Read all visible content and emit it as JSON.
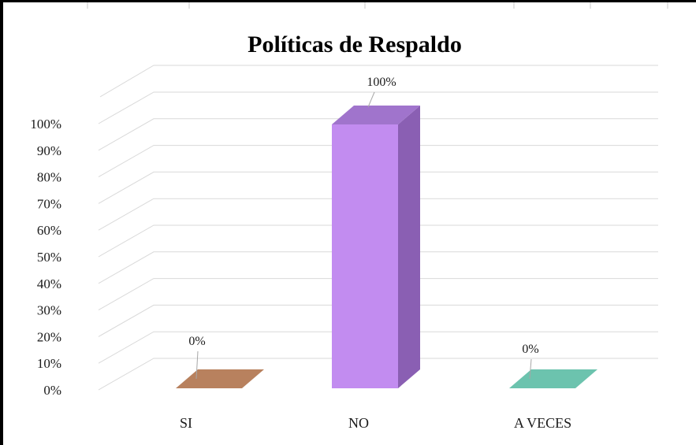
{
  "chart_data": {
    "type": "bar",
    "style": "3d-column",
    "title": "Políticas de Respaldo",
    "categories": [
      "SI",
      "NO",
      "A VECES"
    ],
    "values": [
      0,
      100,
      0
    ],
    "data_labels": [
      "0%",
      "100%",
      "0%"
    ],
    "colors": [
      "#b8815e",
      "#c28cf0",
      "#6cc3ae"
    ],
    "side_colors": [
      "#a06a47",
      "#8a5fb3",
      "#4f9f8c"
    ],
    "top_colors": [
      "#c8906b",
      "#a074cc",
      "#5cb39e"
    ],
    "yticks": [
      "0%",
      "10%",
      "20%",
      "30%",
      "40%",
      "50%",
      "60%",
      "70%",
      "80%",
      "90%",
      "100%"
    ],
    "ylim": [
      0,
      100
    ],
    "xlabel": "",
    "ylabel": "",
    "grid": true,
    "legend": "none"
  }
}
